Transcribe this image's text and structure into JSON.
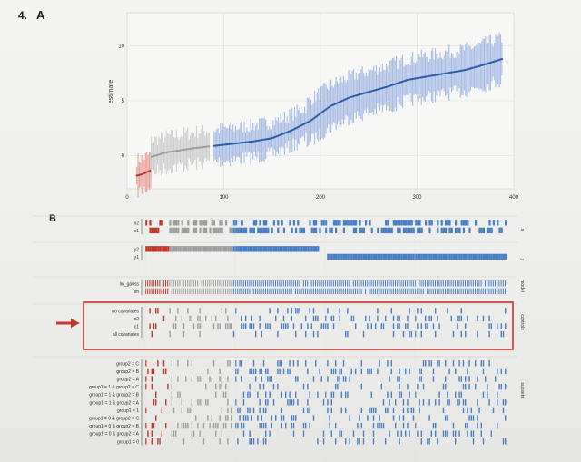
{
  "figure_number": "4.",
  "panel_a": {
    "label": "A",
    "chart_data": {
      "type": "scatter",
      "title": "",
      "xlabel": "",
      "ylabel": "estimate",
      "xlim": [
        0,
        400
      ],
      "ylim": [
        -3,
        13
      ],
      "x_ticks": [
        "0",
        "100",
        "200",
        "300",
        "400"
      ],
      "y_ticks": [
        "0",
        "5",
        "10"
      ],
      "grid": true,
      "legend": "none",
      "series": [
        {
          "color": "#c0392b",
          "x": [
            10,
            15,
            20,
            25
          ],
          "y": [
            -1.8,
            -1.7,
            -1.5,
            -1.3
          ]
        },
        {
          "color": "#9e9e9e",
          "x": [
            25,
            40,
            55,
            70,
            85
          ],
          "y": [
            -0.1,
            0.3,
            0.5,
            0.7,
            0.85
          ]
        },
        {
          "color": "#2c5ea8",
          "x": [
            90,
            110,
            130,
            150,
            170,
            190,
            210,
            230,
            250,
            270,
            290,
            310,
            330,
            350,
            370,
            388
          ],
          "y": [
            0.9,
            1.1,
            1.3,
            1.6,
            2.3,
            3.2,
            4.5,
            5.3,
            5.8,
            6.3,
            6.9,
            7.2,
            7.5,
            7.8,
            8.3,
            8.8
          ]
        }
      ]
    }
  },
  "panel_b": {
    "label": "B",
    "facet_labels": [
      "x",
      "y",
      "model",
      "controls",
      "subsets"
    ],
    "groups": [
      {
        "labels": [
          "x2",
          "x1"
        ]
      },
      {
        "labels": [
          "y2",
          "y1"
        ]
      },
      {
        "labels": [
          "lm_gauss",
          "lm"
        ]
      },
      {
        "labels": [
          "no covariates",
          "c2",
          "c1",
          "all covariates"
        ]
      },
      {
        "labels": [
          "group2 = C",
          "group2 = B",
          "group2 = A",
          "group1 = 1 & group2 = C",
          "group1 = 1 & group2 = B",
          "group1 = 1 & group2 = A",
          "group1 = 1",
          "group1 = 0 & group2 = C",
          "group1 = 0 & group2 = B",
          "group1 = 0 & group2 = A",
          "group1 = 0"
        ]
      }
    ]
  },
  "colors": {
    "red": "#c0392b",
    "grey": "#9e9e9e",
    "blue": "#4a7fc4",
    "dark_blue": "#2c5ea8",
    "band": "#a9bde4",
    "highlight": "#c0392b"
  }
}
